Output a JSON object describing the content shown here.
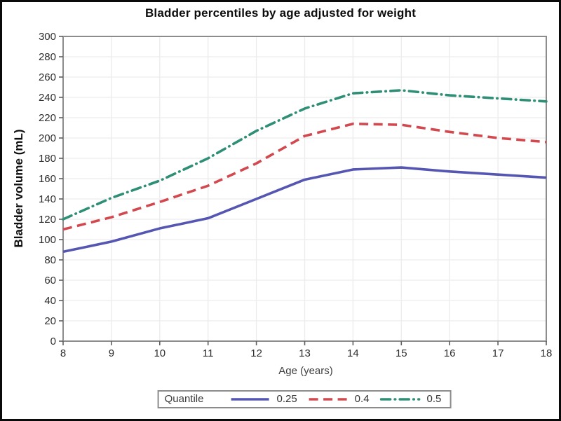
{
  "figure": {
    "title": "Bladder percentiles by age adjusted for weight"
  },
  "chart_data": {
    "type": "line",
    "title": "Bladder percentiles by age adjusted for weight",
    "xlabel": "Age (years)",
    "ylabel": "Bladder volume (mL)",
    "x": [
      8,
      9,
      10,
      11,
      12,
      13,
      14,
      15,
      16,
      17,
      18
    ],
    "xlim": [
      8,
      18
    ],
    "ylim": [
      0,
      300
    ],
    "xtick_step": 1,
    "ytick_step": 20,
    "grid": true,
    "legend": {
      "title": "Quantile",
      "position": "bottom",
      "entries": [
        "0.25",
        "0.4",
        "0.5"
      ]
    },
    "series": [
      {
        "name": "0.25",
        "color": "#5456b2",
        "style": "solid",
        "values": [
          88,
          98,
          111,
          121,
          140,
          159,
          169,
          171,
          167,
          164,
          161
        ]
      },
      {
        "name": "0.4",
        "color": "#d2484f",
        "style": "dashed",
        "values": [
          110,
          122,
          137,
          153,
          175,
          202,
          214,
          213,
          206,
          200,
          196
        ]
      },
      {
        "name": "0.5",
        "color": "#2f8f76",
        "style": "dashdot",
        "values": [
          120,
          141,
          158,
          180,
          207,
          229,
          244,
          247,
          242,
          239,
          236
        ]
      }
    ],
    "styles": {
      "grid_color": "#ececec",
      "frame_color": "#8c8c8c",
      "tick_color": "#5f5f5f",
      "tick_text_color": "#2e2e2e",
      "background": "#ffffff",
      "outer_border_color": "#0a0a0a"
    }
  }
}
